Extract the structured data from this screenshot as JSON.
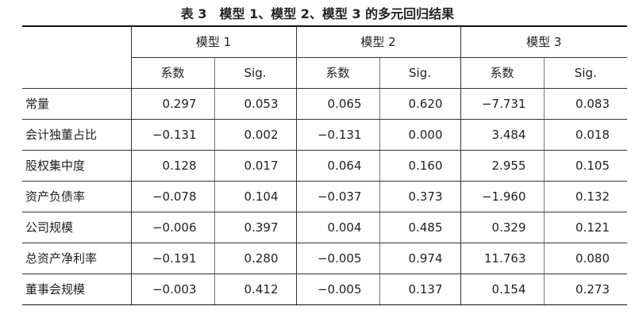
{
  "title": "表 3　模型 1、模型 2、模型 3 的多元回归结果",
  "table": {
    "models": [
      "模型 1",
      "模型 2",
      "模型 3"
    ],
    "columns": [
      "系数",
      "Sig.",
      "系数",
      "Sig.",
      "系数",
      "Sig."
    ],
    "rows": [
      [
        "常量",
        "0.297",
        "0.053",
        "0.065",
        "0.620",
        "−7.731",
        "0.083"
      ],
      [
        "会计独董占比",
        "−0.131",
        "0.002",
        "−0.131",
        "0.000",
        "3.484",
        "0.018"
      ],
      [
        "股权集中度",
        "0.128",
        "0.017",
        "0.064",
        "0.160",
        "2.955",
        "0.105"
      ],
      [
        "资产负债率",
        "−0.078",
        "0.104",
        "−0.037",
        "0.373",
        "−1.960",
        "0.132"
      ],
      [
        "公司规模",
        "−0.006",
        "0.397",
        "0.004",
        "0.485",
        "0.329",
        "0.121"
      ],
      [
        "总资产净利率",
        "−0.191",
        "0.280",
        "−0.005",
        "0.974",
        "11.763",
        "0.080"
      ],
      [
        "董事会规模",
        "−0.003",
        "0.412",
        "−0.005",
        "0.137",
        "0.154",
        "0.273"
      ]
    ]
  }
}
